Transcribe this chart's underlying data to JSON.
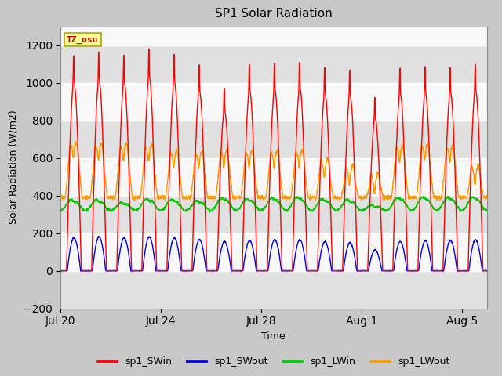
{
  "title": "SP1 Solar Radiation",
  "xlabel": "Time",
  "ylabel": "Solar Radiation (W/m2)",
  "ylim": [
    -200,
    1300
  ],
  "yticks": [
    -200,
    0,
    200,
    400,
    600,
    800,
    1000,
    1200
  ],
  "x_tick_labels": [
    "Jul 20",
    "Jul 24",
    "Jul 28",
    "Aug 1",
    "Aug 5"
  ],
  "x_tick_positions": [
    0,
    4,
    8,
    12,
    16
  ],
  "tz_label": "TZ_osu",
  "outer_bg": "#d0d0d0",
  "plot_bg": "#f0f0f0",
  "stripe_bg": "#e8e8e8",
  "colors": {
    "sp1_SWin": "#ff0000",
    "sp1_SWout": "#0000ee",
    "sp1_LWin": "#00cc00",
    "sp1_LWout": "#ff9900"
  },
  "n_days": 17,
  "SWin_peaks": [
    1000,
    1010,
    1000,
    1030,
    1005,
    955,
    850,
    955,
    960,
    970,
    940,
    930,
    810,
    940,
    950,
    945,
    960
  ],
  "SWout_peaks": [
    175,
    180,
    175,
    180,
    175,
    165,
    155,
    160,
    165,
    165,
    155,
    150,
    110,
    155,
    160,
    160,
    165
  ],
  "LWin_base": 320,
  "LWin_peaks": [
    385,
    385,
    370,
    390,
    385,
    380,
    395,
    390,
    395,
    398,
    390,
    385,
    355,
    398,
    400,
    398,
    400
  ],
  "LWout_base": 390,
  "LWout_peaks": [
    680,
    670,
    670,
    665,
    630,
    625,
    635,
    630,
    630,
    635,
    580,
    540,
    490,
    660,
    670,
    660,
    540
  ]
}
